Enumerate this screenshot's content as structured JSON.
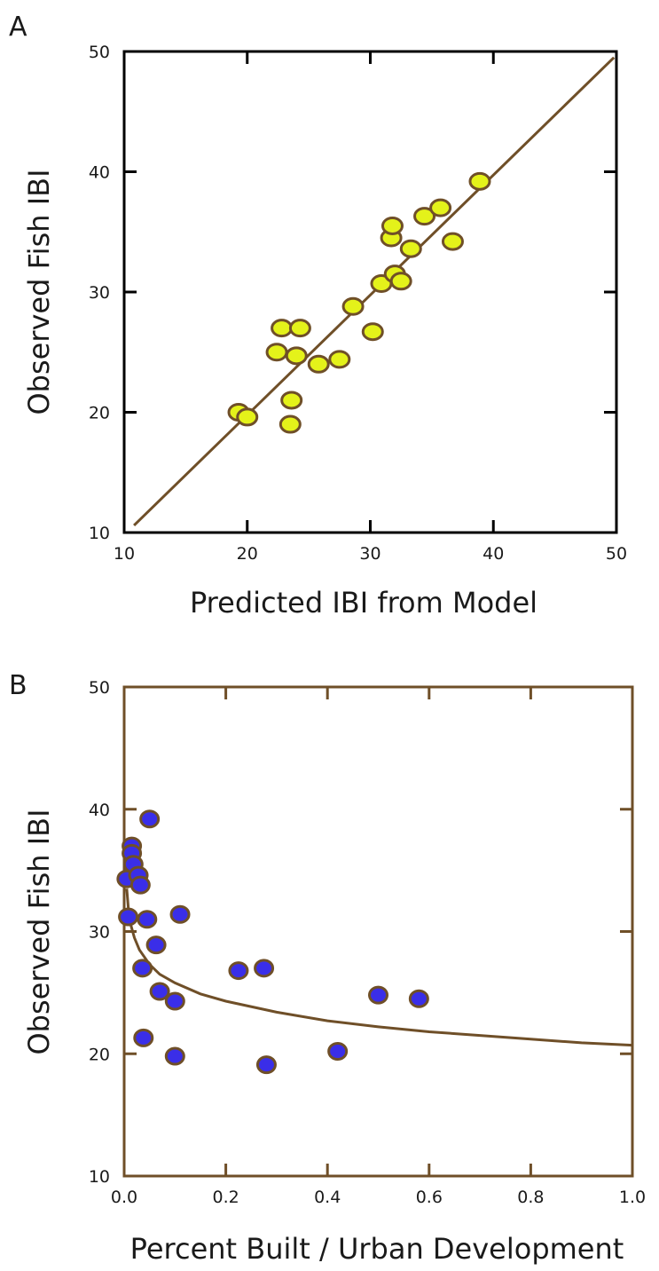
{
  "chart_data": [
    {
      "panel": "A",
      "type": "scatter",
      "xlabel": "Predicted IBI from Model",
      "ylabel": "Observed Fish IBI",
      "xlim": [
        10,
        50
      ],
      "ylim": [
        10,
        50
      ],
      "xticks": [
        10,
        20,
        30,
        40,
        50
      ],
      "yticks": [
        10,
        20,
        30,
        40,
        50
      ],
      "grid": false,
      "colors": {
        "frame": "#000000",
        "line": "#6f4f28",
        "marker_fill": "#e4f21a",
        "marker_edge": "#6f4f28"
      },
      "points": [
        {
          "x": 19.3,
          "y": 20.0
        },
        {
          "x": 20.0,
          "y": 19.6
        },
        {
          "x": 22.4,
          "y": 25.0
        },
        {
          "x": 22.8,
          "y": 27.0
        },
        {
          "x": 23.6,
          "y": 21.0
        },
        {
          "x": 23.5,
          "y": 19.0
        },
        {
          "x": 24.0,
          "y": 24.7
        },
        {
          "x": 24.3,
          "y": 27.0
        },
        {
          "x": 25.8,
          "y": 24.0
        },
        {
          "x": 27.5,
          "y": 24.4
        },
        {
          "x": 28.6,
          "y": 28.8
        },
        {
          "x": 30.2,
          "y": 26.7
        },
        {
          "x": 30.9,
          "y": 30.7
        },
        {
          "x": 31.7,
          "y": 34.5
        },
        {
          "x": 31.8,
          "y": 35.5
        },
        {
          "x": 32.0,
          "y": 31.5
        },
        {
          "x": 32.5,
          "y": 30.9
        },
        {
          "x": 33.3,
          "y": 33.6
        },
        {
          "x": 34.4,
          "y": 36.3
        },
        {
          "x": 35.7,
          "y": 37.0
        },
        {
          "x": 36.7,
          "y": 34.2
        },
        {
          "x": 38.9,
          "y": 39.2
        }
      ],
      "fit_line": {
        "x": [
          10.8,
          49.8
        ],
        "y": [
          10.6,
          49.5
        ]
      }
    },
    {
      "panel": "B",
      "type": "scatter",
      "xlabel": "Percent Built / Urban Development",
      "ylabel": "Observed Fish IBI",
      "xlim": [
        0.0,
        1.0
      ],
      "ylim": [
        10,
        50
      ],
      "xticks": [
        "0.0",
        "0.2",
        "0.4",
        "0.6",
        "0.8",
        "1.0"
      ],
      "yticks": [
        10,
        20,
        30,
        40,
        50
      ],
      "grid": false,
      "colors": {
        "frame": "#6f4f28",
        "line": "#6f4f28",
        "marker_fill": "#3a2ee8",
        "marker_edge": "#6f4f28"
      },
      "points": [
        {
          "x": 0.005,
          "y": 34.3
        },
        {
          "x": 0.008,
          "y": 31.2
        },
        {
          "x": 0.015,
          "y": 37.0
        },
        {
          "x": 0.015,
          "y": 36.4
        },
        {
          "x": 0.018,
          "y": 35.5
        },
        {
          "x": 0.028,
          "y": 34.6
        },
        {
          "x": 0.032,
          "y": 33.8
        },
        {
          "x": 0.036,
          "y": 27.0
        },
        {
          "x": 0.038,
          "y": 21.3
        },
        {
          "x": 0.045,
          "y": 31.0
        },
        {
          "x": 0.05,
          "y": 39.2
        },
        {
          "x": 0.063,
          "y": 28.9
        },
        {
          "x": 0.07,
          "y": 25.1
        },
        {
          "x": 0.1,
          "y": 24.3
        },
        {
          "x": 0.1,
          "y": 19.8
        },
        {
          "x": 0.11,
          "y": 31.4
        },
        {
          "x": 0.225,
          "y": 26.8
        },
        {
          "x": 0.275,
          "y": 27.0
        },
        {
          "x": 0.28,
          "y": 19.1
        },
        {
          "x": 0.42,
          "y": 20.2
        },
        {
          "x": 0.5,
          "y": 24.8
        },
        {
          "x": 0.58,
          "y": 24.5
        }
      ],
      "fit_curve": {
        "x": [
          0.005,
          0.01,
          0.02,
          0.03,
          0.05,
          0.07,
          0.1,
          0.15,
          0.2,
          0.3,
          0.4,
          0.5,
          0.6,
          0.7,
          0.8,
          0.9,
          1.0
        ],
        "y": [
          33.5,
          31.0,
          29.5,
          28.5,
          27.3,
          26.5,
          25.8,
          24.9,
          24.3,
          23.4,
          22.7,
          22.2,
          21.8,
          21.5,
          21.2,
          20.9,
          20.7
        ]
      }
    }
  ]
}
